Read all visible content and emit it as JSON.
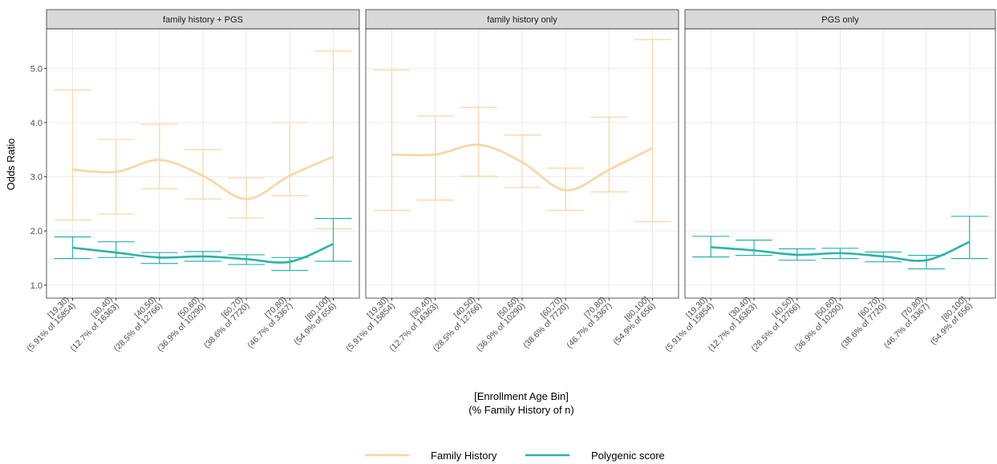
{
  "figure": {
    "y_label": "Odds Ratio",
    "x_label": [
      "[Enrollment Age Bin]",
      "(% Family History of n)"
    ]
  },
  "chart_data": [
    {
      "type": "line",
      "title": "family history + PGS",
      "categories": [
        [
          "[19,30)",
          "(5.91% of 15854)"
        ],
        [
          "[30,40)",
          "(12.7% of 16363)"
        ],
        [
          "[40,50)",
          "(28.5% of 12766)"
        ],
        [
          "[50,60)",
          "(36.9% of 10290)"
        ],
        [
          "[60,70)",
          "(38.6% of 7720)"
        ],
        [
          "[70,80)",
          "(46.7% of 3367)"
        ],
        [
          "[80,100]",
          "(54.9% of 656)"
        ]
      ],
      "series": [
        {
          "name": "Family History",
          "color": "#f8d5a3",
          "values": [
            3.13,
            3.09,
            3.31,
            3.02,
            2.59,
            3.02,
            3.37
          ],
          "lower": [
            2.2,
            2.31,
            2.78,
            2.59,
            2.24,
            2.65,
            2.04
          ],
          "upper": [
            4.6,
            3.69,
            3.97,
            3.5,
            2.98,
            4.0,
            5.32
          ]
        },
        {
          "name": "Polygenic score",
          "color": "#2ab3a9",
          "values": [
            1.69,
            1.6,
            1.51,
            1.53,
            1.48,
            1.43,
            1.76
          ],
          "lower": [
            1.49,
            1.51,
            1.4,
            1.44,
            1.38,
            1.27,
            1.44
          ],
          "upper": [
            1.89,
            1.8,
            1.6,
            1.62,
            1.56,
            1.51,
            2.23
          ]
        }
      ],
      "ylim": [
        0.76,
        5.73
      ],
      "yticks": [
        {
          "value": 1,
          "label": "1.0"
        },
        {
          "value": 2,
          "label": "2.0"
        },
        {
          "value": 3,
          "label": "3.0"
        },
        {
          "value": 4,
          "label": "4.0"
        },
        {
          "value": 5,
          "label": "5.0"
        }
      ],
      "grid": true
    },
    {
      "type": "line",
      "title": "family history only",
      "categories": [
        [
          "[19,30)",
          "(5.91% of 15854)"
        ],
        [
          "[30,40)",
          "(12.7% of 16363)"
        ],
        [
          "[40,50)",
          "(28.5% of 12766)"
        ],
        [
          "[50,60)",
          "(36.9% of 10290)"
        ],
        [
          "[60,70)",
          "(38.6% of 7720)"
        ],
        [
          "[70,80)",
          "(46.7% of 3367)"
        ],
        [
          "[80,100]",
          "(54.9% of 656)"
        ]
      ],
      "series": [
        {
          "name": "Family History",
          "color": "#f8d5a3",
          "values": [
            3.41,
            3.41,
            3.59,
            3.27,
            2.75,
            3.13,
            3.53
          ],
          "lower": [
            2.38,
            2.57,
            3.01,
            2.8,
            2.38,
            2.72,
            2.17
          ],
          "upper": [
            4.97,
            4.12,
            4.28,
            3.77,
            3.16,
            4.1,
            5.53
          ]
        }
      ],
      "ylim": [
        0.76,
        5.73
      ],
      "yticks": [
        1,
        2,
        3,
        4,
        5
      ],
      "grid": true
    },
    {
      "type": "line",
      "title": "PGS only",
      "categories": [
        [
          "[19,30)",
          "(5.91% of 15854)"
        ],
        [
          "[30,40)",
          "(12.7% of 16363)"
        ],
        [
          "[40,50)",
          "(28.5% of 12766)"
        ],
        [
          "[50,60)",
          "(36.9% of 10290)"
        ],
        [
          "[60,70)",
          "(38.6% of 7720)"
        ],
        [
          "[70,80)",
          "(46.7% of 3367)"
        ],
        [
          "[80,100]",
          "(54.9% of 656)"
        ]
      ],
      "series": [
        {
          "name": "Polygenic score",
          "color": "#2ab3a9",
          "values": [
            1.7,
            1.64,
            1.56,
            1.59,
            1.53,
            1.46,
            1.8
          ],
          "lower": [
            1.52,
            1.55,
            1.46,
            1.49,
            1.43,
            1.3,
            1.49
          ],
          "upper": [
            1.9,
            1.83,
            1.67,
            1.68,
            1.61,
            1.55,
            2.27
          ]
        }
      ],
      "ylim": [
        0.76,
        5.73
      ],
      "yticks": [
        1,
        2,
        3,
        4,
        5
      ],
      "grid": true
    }
  ]
}
